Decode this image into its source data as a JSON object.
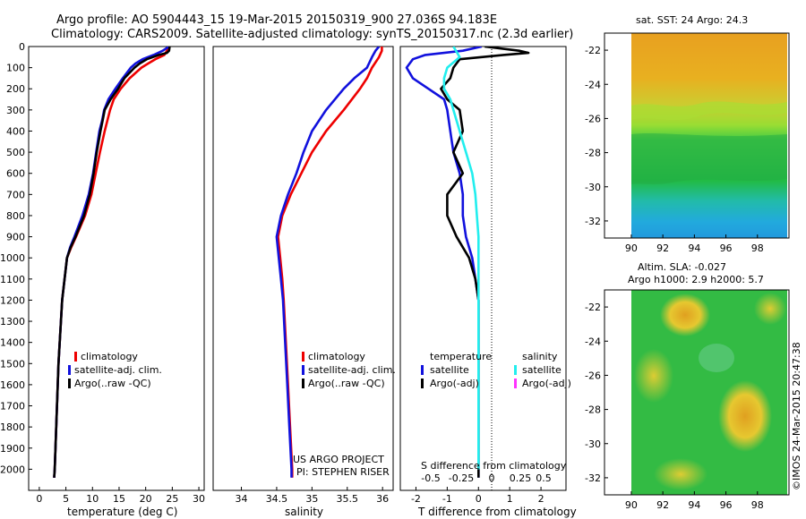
{
  "header": {
    "line1": "Argo profile: AO 5904443_15 19-Mar-2015 20150319_900 27.036S 94.183E",
    "line2": "Climatology: CARS2009. Satellite-adjusted climatology: synTS_20150317.nc (2.3d earlier)"
  },
  "colors": {
    "climatology": "#ee0000",
    "satellite": "#1111dd",
    "argo": "#000000",
    "sal_satellite": "#22eeee",
    "sal_argo": "#ff33ff"
  },
  "legend": {
    "climatology": "climatology",
    "satellite_adj": "satellite-adj. clim.",
    "argo_raw": "Argo(..raw -QC)"
  },
  "diff_legend": {
    "temperature": "temperature",
    "salinity": "salinity",
    "satellite": "satellite",
    "argo_adj": "Argo(-adj)"
  },
  "project": {
    "line1": "US ARGO PROJECT",
    "line2": "PI: STEPHEN RISER"
  },
  "right_panels": {
    "sst_title": "sat. SST: 24 Argo: 24.3",
    "sla_title1": "Altim. SLA: -0.027",
    "sla_title2": "Argo h1000: 2.9 h2000: 5.7",
    "credit": "©IMOS 24-Mar-2015 20:47:38",
    "lat_ticks": [
      "-22",
      "-24",
      "-26",
      "-28",
      "-30",
      "-32"
    ],
    "lon_ticks": [
      "90",
      "92",
      "94",
      "96",
      "98"
    ]
  },
  "chart_data": [
    {
      "type": "line",
      "xlabel": "temperature (deg C)",
      "xlim": [
        -2,
        31
      ],
      "ylim": [
        2100,
        0
      ],
      "x_ticks": [
        "0",
        "5",
        "10",
        "15",
        "20",
        "25",
        "30"
      ],
      "y_ticks": [
        "0",
        "100",
        "200",
        "300",
        "400",
        "500",
        "600",
        "700",
        "800",
        "900",
        "1000",
        "1100",
        "1200",
        "1300",
        "1400",
        "1500",
        "1600",
        "1700",
        "1800",
        "1900",
        "2000"
      ],
      "series": [
        {
          "name": "climatology",
          "color": "#ee0000",
          "y": [
            0,
            20,
            40,
            60,
            80,
            100,
            150,
            200,
            250,
            300,
            350,
            400,
            500,
            600,
            700,
            800,
            900,
            950,
            1000,
            1200,
            1500,
            2000,
            2040
          ],
          "x": [
            24.3,
            24.0,
            23.5,
            21.8,
            20.5,
            19.2,
            17.0,
            15.3,
            14.0,
            13.3,
            12.8,
            12.3,
            11.4,
            10.6,
            9.8,
            8.6,
            6.9,
            6.0,
            5.2,
            4.3,
            3.6,
            2.9,
            2.8
          ]
        },
        {
          "name": "satellite-adj. clim.",
          "color": "#1111dd",
          "y": [
            0,
            20,
            40,
            60,
            80,
            100,
            150,
            200,
            250,
            300,
            350,
            400,
            500,
            600,
            700,
            800,
            900,
            950,
            1000,
            1200,
            1500,
            2000,
            2040
          ],
          "x": [
            24.4,
            23.2,
            21.5,
            19.4,
            18.1,
            17.2,
            15.7,
            14.3,
            13.0,
            12.2,
            11.8,
            11.3,
            10.7,
            10.1,
            9.3,
            8.1,
            6.6,
            5.8,
            5.2,
            4.3,
            3.6,
            2.9,
            2.8
          ]
        },
        {
          "name": "Argo(..raw -QC)",
          "color": "#000000",
          "y": [
            0,
            20,
            30,
            40,
            60,
            80,
            100,
            150,
            200,
            250,
            300,
            350,
            400,
            500,
            600,
            700,
            800,
            900,
            950,
            1000,
            1200,
            1500,
            2000,
            2040
          ],
          "x": [
            24.5,
            24.4,
            24.0,
            22.5,
            20.2,
            18.9,
            17.9,
            16.0,
            14.8,
            13.4,
            12.3,
            11.9,
            11.5,
            10.8,
            10.2,
            9.5,
            8.4,
            6.8,
            5.9,
            5.2,
            4.3,
            3.6,
            2.9,
            2.8
          ]
        }
      ]
    },
    {
      "type": "line",
      "xlabel": "salinity",
      "xlim": [
        33.6,
        36.15
      ],
      "ylim": [
        2100,
        0
      ],
      "x_ticks": [
        "34",
        "34.5",
        "35",
        "35.5",
        "36"
      ],
      "series": [
        {
          "name": "climatology",
          "color": "#ee0000",
          "y": [
            0,
            20,
            50,
            100,
            150,
            200,
            300,
            400,
            500,
            600,
            700,
            800,
            900,
            1000,
            1100,
            1200,
            1400,
            1600,
            1800,
            2000,
            2040
          ],
          "x": [
            35.99,
            35.99,
            35.95,
            35.85,
            35.78,
            35.68,
            35.45,
            35.2,
            35.0,
            34.85,
            34.7,
            34.58,
            34.52,
            34.55,
            34.58,
            34.6,
            34.63,
            34.66,
            34.69,
            34.72,
            34.72
          ]
        },
        {
          "name": "satellite-adj. clim.",
          "color": "#1111dd",
          "y": [
            0,
            20,
            50,
            100,
            150,
            200,
            300,
            400,
            500,
            600,
            700,
            800,
            900,
            1000,
            1100,
            1200,
            1400,
            1600,
            1800,
            2000,
            2040
          ],
          "x": [
            35.95,
            35.9,
            35.85,
            35.78,
            35.6,
            35.45,
            35.2,
            35.0,
            34.88,
            34.78,
            34.66,
            34.56,
            34.5,
            34.53,
            34.56,
            34.59,
            34.62,
            34.65,
            34.68,
            34.71,
            34.71
          ]
        }
      ]
    },
    {
      "type": "line",
      "xlabel": "T difference from climatology",
      "top_label": "S difference from climatology",
      "xlim": [
        -2.5,
        2.8
      ],
      "ylim": [
        2100,
        0
      ],
      "x_ticks": [
        "-2",
        "-1",
        "0",
        "1",
        "2"
      ],
      "top_ticks": [
        "-0.5",
        "-0.25",
        "0",
        "0.25",
        "0.5"
      ],
      "series": [
        {
          "name": "temperature satellite",
          "color": "#1111dd",
          "y": [
            0,
            20,
            40,
            60,
            80,
            100,
            150,
            200,
            250,
            300,
            400,
            500,
            600,
            700,
            800,
            900,
            1000,
            1100,
            1200,
            1400,
            1600,
            1800,
            2000,
            2040
          ],
          "x": [
            0.1,
            -0.5,
            -1.7,
            -2.1,
            -2.2,
            -2.3,
            -2.1,
            -1.6,
            -1.1,
            -1.0,
            -0.9,
            -0.8,
            -0.6,
            -0.5,
            -0.5,
            -0.4,
            -0.2,
            -0.1,
            0.0,
            0.0,
            0.0,
            0.0,
            0.0,
            0.0
          ]
        },
        {
          "name": "temperature Argo(-adj)",
          "color": "#000000",
          "y": [
            0,
            20,
            30,
            40,
            60,
            80,
            100,
            150,
            200,
            250,
            300,
            400,
            500,
            600,
            700,
            800,
            900,
            1000,
            1100,
            1200,
            1400,
            1600,
            1800,
            2000,
            2040
          ],
          "x": [
            0.2,
            1.3,
            1.6,
            0.8,
            -0.6,
            -0.7,
            -0.8,
            -0.9,
            -1.2,
            -1.0,
            -0.6,
            -0.5,
            -0.8,
            -0.5,
            -1.0,
            -1.0,
            -0.7,
            -0.3,
            -0.1,
            0.0,
            0.0,
            0.0,
            0.0,
            0.0,
            0.0
          ]
        },
        {
          "name": "salinity satellite",
          "color": "#22eeee",
          "y": [
            0,
            50,
            100,
            150,
            200,
            250,
            300,
            400,
            500,
            600,
            700,
            800,
            900,
            1000,
            1200,
            1500,
            2000
          ],
          "x": [
            -0.8,
            -0.6,
            -1.0,
            -1.1,
            -1.1,
            -0.9,
            -0.8,
            -0.6,
            -0.4,
            -0.2,
            -0.1,
            -0.05,
            0.0,
            0.0,
            0.0,
            0.0,
            0.0
          ]
        }
      ]
    }
  ]
}
